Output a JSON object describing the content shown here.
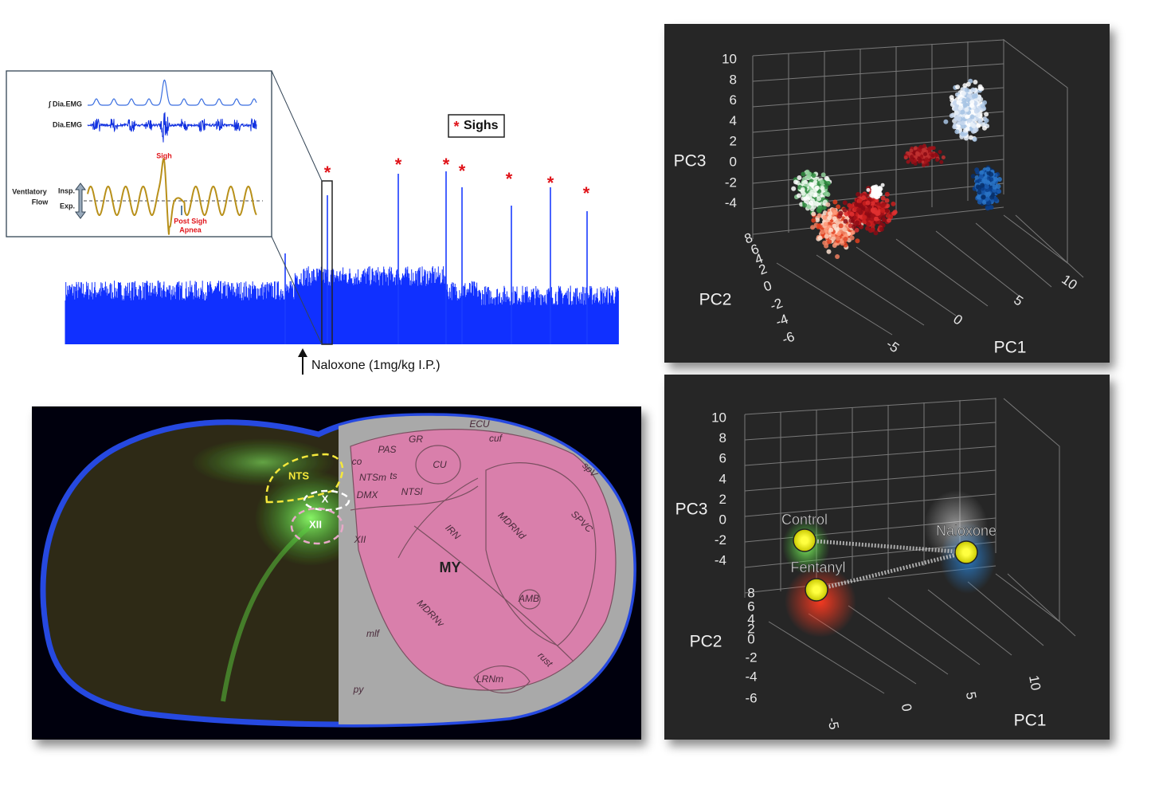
{
  "trace_panel": {
    "inset": {
      "integrated_emg_label": "∫ Dia.EMG",
      "emg_label": "Dia.EMG",
      "sigh_label": "Sigh",
      "flow_label": [
        "Ventlatory",
        "Flow"
      ],
      "insp_label": "Insp.",
      "exp_label": "Exp.",
      "apnea_label": [
        "Post Sigh",
        "Apnea"
      ]
    },
    "sigh_marker": "*",
    "legend_label": "Sighs",
    "annotation": "Naloxone (1mg/kg I.P.)"
  },
  "brain_panel": {
    "overlay_labels": [
      "NTS",
      "X",
      "XII"
    ],
    "atlas_labels": [
      "ECU",
      "cuf",
      "GR",
      "PAS",
      "CU",
      "co",
      "NTSm",
      "ts",
      "DMX",
      "NTSl",
      "XII",
      "IRN",
      "MDRNd",
      "SPVC",
      "spV",
      "MY",
      "MDRNv",
      "AMB",
      "mlf",
      "rust",
      "LRNm",
      "py"
    ]
  },
  "pca_panels": [
    {
      "pc3_ticks": [
        10,
        8,
        6,
        4,
        2,
        0,
        -2,
        -4
      ],
      "pc2_ticks": [
        8,
        6,
        4,
        2,
        0,
        -2,
        -4,
        -6
      ],
      "pc1_ticks": [
        -5,
        0,
        5,
        10
      ],
      "axis_labels": {
        "x": "PC1",
        "y": "PC2",
        "z": "PC3"
      }
    },
    {
      "pc3_ticks": [
        10,
        8,
        6,
        4,
        2,
        0,
        -2,
        -4
      ],
      "pc2_ticks": [
        8,
        6,
        4,
        2,
        0,
        -2,
        -4,
        -6
      ],
      "pc1_ticks": [
        -5,
        0,
        5,
        10
      ],
      "axis_labels": {
        "x": "PC1",
        "y": "PC2",
        "z": "PC3"
      },
      "groups": [
        "Control",
        "Fentanyl",
        "Naloxone"
      ]
    }
  ]
}
